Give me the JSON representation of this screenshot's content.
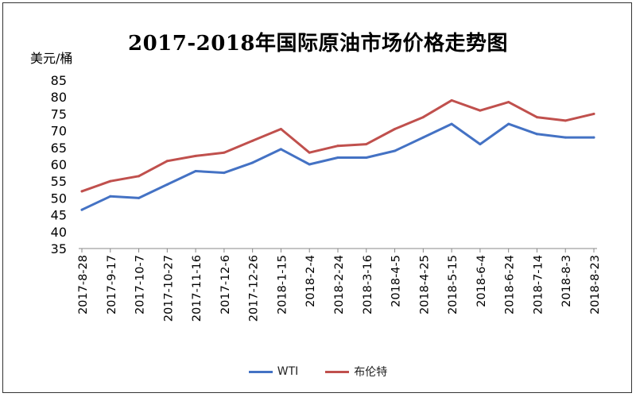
{
  "chart_data": {
    "type": "line",
    "title": "2017-2018年国际原油市场价格走势图",
    "ylabel": "美元/桶",
    "xlabel": "",
    "ylim": [
      35,
      85
    ],
    "yticks": [
      35,
      40,
      45,
      50,
      55,
      60,
      65,
      70,
      75,
      80,
      85
    ],
    "x": [
      "2017-8-28",
      "2017-9-17",
      "2017-10-7",
      "2017-10-27",
      "2017-11-16",
      "2017-12-6",
      "2017-12-26",
      "2018-1-15",
      "2018-2-4",
      "2018-2-24",
      "2018-3-16",
      "2018-4-5",
      "2018-4-25",
      "2018-5-15",
      "2018-6-4",
      "2018-6-24",
      "2018-7-14",
      "2018-8-3",
      "2018-8-23"
    ],
    "grid": false,
    "legend_position": "bottom",
    "series": [
      {
        "name": "WTI",
        "color": "#4472C4",
        "values": [
          46.5,
          50.5,
          50.0,
          54.0,
          58.0,
          57.5,
          60.5,
          64.5,
          60.0,
          62.0,
          62.0,
          64.0,
          68.0,
          72.0,
          66.0,
          72.0,
          69.0,
          68.0,
          68.0
        ]
      },
      {
        "name": "布伦特",
        "color": "#C0504D",
        "values": [
          52.0,
          55.0,
          56.5,
          61.0,
          62.5,
          63.5,
          67.0,
          70.5,
          63.5,
          65.5,
          66.0,
          70.5,
          74.0,
          79.0,
          76.0,
          78.5,
          74.0,
          73.0,
          75.0
        ]
      }
    ]
  }
}
